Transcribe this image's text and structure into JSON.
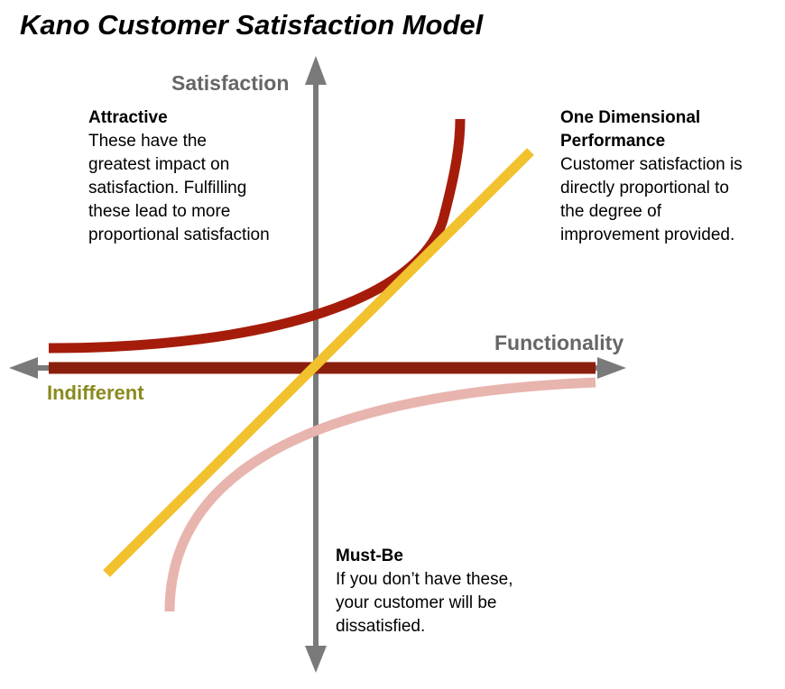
{
  "title": "Kano Customer Satisfaction Model",
  "axes": {
    "y_label": "Satisfaction",
    "x_label": "Functionality"
  },
  "categories": {
    "attractive": {
      "heading": "Attractive",
      "lines": [
        "These have the",
        "greatest impact on",
        "satisfaction. Fulfilling",
        "these lead to more",
        "proportional satisfaction"
      ],
      "color": "#a51c0b"
    },
    "one_dimensional": {
      "heading_lines": [
        "One Dimensional",
        "Performance"
      ],
      "lines": [
        "Customer satisfaction is",
        "directly proportional to",
        "the degree of",
        "improvement provided."
      ],
      "color": "#f2c12e"
    },
    "must_be": {
      "heading": "Must-Be",
      "lines": [
        "If you don’t have these,",
        "your customer will be",
        "dissatisfied."
      ],
      "color": "#e8b4ae"
    },
    "indifferent": {
      "label": "Indifferent",
      "label_color": "#8a8a1e",
      "line_color": "#8b1f0e"
    }
  },
  "colors": {
    "axis": "#7a7a7a"
  }
}
